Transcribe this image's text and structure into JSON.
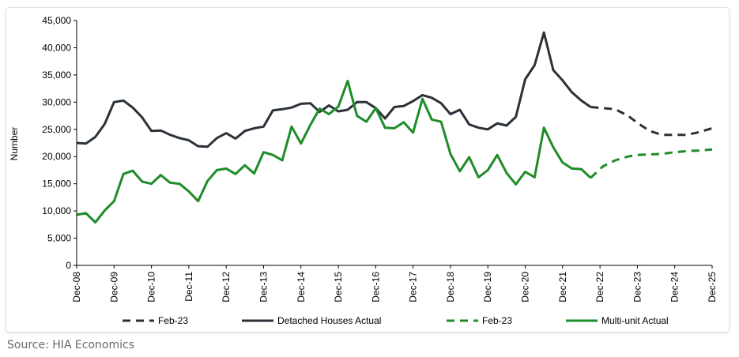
{
  "source_text": "Source: HIA Economics",
  "colors": {
    "detached": "#2b3138",
    "multi": "#1e8c28",
    "axis": "#000000"
  },
  "chart_data": {
    "type": "line",
    "ylabel": "Number",
    "xlabel": "",
    "ylim": [
      0,
      45000
    ],
    "yticks": [
      0,
      5000,
      10000,
      15000,
      20000,
      25000,
      30000,
      35000,
      40000,
      45000
    ],
    "ytick_labels": [
      "0",
      "5,000",
      "10,000",
      "15,000",
      "20,000",
      "25,000",
      "30,000",
      "35,000",
      "40,000",
      "45,000"
    ],
    "xlim": [
      2008.92,
      2025.92
    ],
    "xticks": [
      2008.92,
      2009.92,
      2010.92,
      2011.92,
      2012.92,
      2013.92,
      2014.92,
      2015.92,
      2016.92,
      2017.92,
      2018.92,
      2019.92,
      2020.92,
      2021.92,
      2022.92,
      2023.92,
      2024.92,
      2025.92
    ],
    "xtick_labels": [
      "Dec-08",
      "Dec-09",
      "Dec-10",
      "Dec-11",
      "Dec-12",
      "Dec-13",
      "Dec-14",
      "Dec-15",
      "Dec-16",
      "Dec-17",
      "Dec-18",
      "Dec-19",
      "Dec-20",
      "Dec-21",
      "Dec-22",
      "Dec-23",
      "Dec-24",
      "Dec-25"
    ],
    "legend": [
      "Feb-23",
      "Detached Houses Actual",
      "Feb-23",
      "Multi-unit Actual"
    ],
    "legend_position": "bottom",
    "grid": false,
    "series": [
      {
        "name": "Detached Houses Actual",
        "color": "#2b3138",
        "dash": false,
        "x": [
          2008.92,
          2009.17,
          2009.42,
          2009.67,
          2009.92,
          2010.17,
          2010.42,
          2010.67,
          2010.92,
          2011.17,
          2011.42,
          2011.67,
          2011.92,
          2012.17,
          2012.42,
          2012.67,
          2012.92,
          2013.17,
          2013.42,
          2013.67,
          2013.92,
          2014.17,
          2014.42,
          2014.67,
          2014.92,
          2015.17,
          2015.42,
          2015.67,
          2015.92,
          2016.17,
          2016.42,
          2016.67,
          2016.92,
          2017.17,
          2017.42,
          2017.67,
          2017.92,
          2018.17,
          2018.42,
          2018.67,
          2018.92,
          2019.17,
          2019.42,
          2019.67,
          2019.92,
          2020.17,
          2020.42,
          2020.67,
          2020.92,
          2021.17,
          2021.42,
          2021.67,
          2021.92,
          2022.17,
          2022.42,
          2022.67
        ],
        "y": [
          22500,
          22400,
          23600,
          26000,
          30000,
          30300,
          29000,
          27200,
          24700,
          24800,
          24000,
          23400,
          23000,
          21900,
          21800,
          23400,
          24300,
          23300,
          24700,
          25200,
          25500,
          28500,
          28700,
          29000,
          29700,
          29800,
          28200,
          29400,
          28300,
          28600,
          30000,
          30000,
          28900,
          27000,
          29100,
          29300,
          30200,
          31300,
          30800,
          29800,
          27800,
          28600,
          25900,
          25300,
          25000,
          26100,
          25700,
          27300,
          34200,
          36800,
          42800,
          35900,
          34000,
          31800,
          30300,
          29100
        ]
      },
      {
        "name": "Feb-23",
        "color": "#2b3138",
        "dash": true,
        "x": [
          2022.67,
          2023.0,
          2023.33,
          2023.67,
          2023.92,
          2024.25,
          2024.58,
          2024.92,
          2025.25,
          2025.58,
          2025.92
        ],
        "y": [
          29100,
          28900,
          28700,
          27500,
          26200,
          24700,
          24000,
          24000,
          24000,
          24500,
          25200
        ]
      },
      {
        "name": "Multi-unit Actual",
        "color": "#1e8c28",
        "dash": false,
        "x": [
          2008.92,
          2009.17,
          2009.42,
          2009.67,
          2009.92,
          2010.17,
          2010.42,
          2010.67,
          2010.92,
          2011.17,
          2011.42,
          2011.67,
          2011.92,
          2012.17,
          2012.42,
          2012.67,
          2012.92,
          2013.17,
          2013.42,
          2013.67,
          2013.92,
          2014.17,
          2014.42,
          2014.67,
          2014.92,
          2015.17,
          2015.42,
          2015.67,
          2015.92,
          2016.17,
          2016.42,
          2016.67,
          2016.92,
          2017.17,
          2017.42,
          2017.67,
          2017.92,
          2018.17,
          2018.42,
          2018.67,
          2018.92,
          2019.17,
          2019.42,
          2019.67,
          2019.92,
          2020.17,
          2020.42,
          2020.67,
          2020.92,
          2021.17,
          2021.42,
          2021.67,
          2021.92,
          2022.17,
          2022.42,
          2022.67
        ],
        "y": [
          9300,
          9600,
          7900,
          10100,
          11800,
          16800,
          17400,
          15400,
          15000,
          16600,
          15200,
          15000,
          13600,
          11800,
          15500,
          17500,
          17800,
          16800,
          18400,
          16900,
          20800,
          20300,
          19300,
          25500,
          22400,
          25800,
          28800,
          27800,
          29200,
          33900,
          27500,
          26400,
          28900,
          25300,
          25200,
          26300,
          24400,
          30600,
          26800,
          26400,
          20500,
          17300,
          19900,
          16200,
          17500,
          20300,
          17000,
          14900,
          17200,
          16200,
          25300,
          21700,
          18900,
          17800,
          17700,
          16100
        ]
      },
      {
        "name": "Feb-23",
        "color": "#1e8c28",
        "dash": true,
        "x": [
          2022.67,
          2023.0,
          2023.33,
          2023.67,
          2023.92,
          2024.25,
          2024.58,
          2024.92,
          2025.25,
          2025.58,
          2025.92
        ],
        "y": [
          16100,
          18200,
          19300,
          20000,
          20300,
          20400,
          20500,
          20800,
          21000,
          21100,
          21300
        ]
      }
    ]
  }
}
